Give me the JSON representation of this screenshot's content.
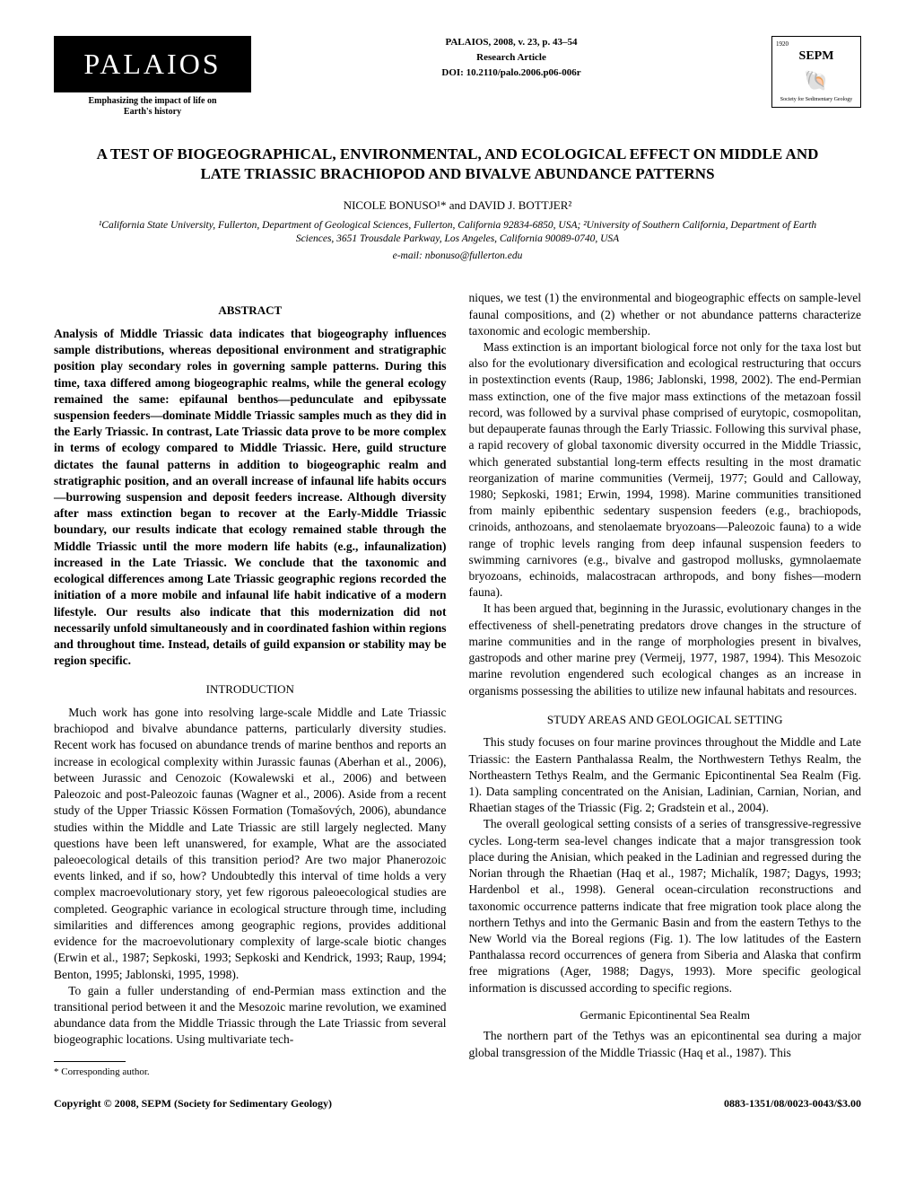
{
  "header": {
    "journal_logo_text": "PALAIOS",
    "journal_tagline1": "Emphasizing the impact of life on",
    "journal_tagline2": "Earth's history",
    "citation": "PALAIOS, 2008, v. 23, p. 43–54",
    "article_type": "Research Article",
    "doi": "DOI: 10.2110/palo.2006.p06-006r",
    "sepm_year": "1920",
    "sepm_text": "SEPM",
    "sepm_sub": "Society for Sedimentary Geology"
  },
  "title": "A TEST OF BIOGEOGRAPHICAL, ENVIRONMENTAL, AND ECOLOGICAL EFFECT ON MIDDLE AND LATE TRIASSIC BRACHIOPOD AND BIVALVE ABUNDANCE PATTERNS",
  "authors": "NICOLE BONUSO¹* and DAVID J. BOTTJER²",
  "affiliations": "¹California State University, Fullerton, Department of Geological Sciences, Fullerton, California 92834-6850, USA; ²University of Southern California, Department of Earth Sciences, 3651 Trousdale Parkway, Los Angeles, California 90089-0740, USA",
  "email": "e-mail: nbonuso@fullerton.edu",
  "sections": {
    "abstract_heading": "ABSTRACT",
    "abstract": "Analysis of Middle Triassic data indicates that biogeography influences sample distributions, whereas depositional environment and stratigraphic position play secondary roles in governing sample patterns. During this time, taxa differed among biogeographic realms, while the general ecology remained the same: epifaunal benthos—pedunculate and epibyssate suspension feeders—dominate Middle Triassic samples much as they did in the Early Triassic. In contrast, Late Triassic data prove to be more complex in terms of ecology compared to Middle Triassic. Here, guild structure dictates the faunal patterns in addition to biogeographic realm and stratigraphic position, and an overall increase of infaunal life habits occurs—burrowing suspension and deposit feeders increase. Although diversity after mass extinction began to recover at the Early-Middle Triassic boundary, our results indicate that ecology remained stable through the Middle Triassic until the more modern life habits (e.g., infaunalization) increased in the Late Triassic. We conclude that the taxonomic and ecological differences among Late Triassic geographic regions recorded the initiation of a more mobile and infaunal life habit indicative of a modern lifestyle. Our results also indicate that this modernization did not necessarily unfold simultaneously and in coordinated fashion within regions and throughout time. Instead, details of guild expansion or stability may be region specific.",
    "intro_heading": "INTRODUCTION",
    "intro_p1": "Much work has gone into resolving large-scale Middle and Late Triassic brachiopod and bivalve abundance patterns, particularly diversity studies. Recent work has focused on abundance trends of marine benthos and reports an increase in ecological complexity within Jurassic faunas (Aberhan et al., 2006), between Jurassic and Cenozoic (Kowalewski et al., 2006) and between Paleozoic and post-Paleozoic faunas (Wagner et al., 2006). Aside from a recent study of the Upper Triassic Kössen Formation (Tomašových, 2006), abundance studies within the Middle and Late Triassic are still largely neglected. Many questions have been left unanswered, for example, What are the associated paleoecological details of this transition period? Are two major Phanerozoic events linked, and if so, how? Undoubtedly this interval of time holds a very complex macroevolutionary story, yet few rigorous paleoecological studies are completed. Geographic variance in ecological structure through time, including similarities and differences among geographic regions, provides additional evidence for the macroevolutionary complexity of large-scale biotic changes (Erwin et al., 1987; Sepkoski, 1993; Sepkoski and Kendrick, 1993; Raup, 1994; Benton, 1995; Jablonski, 1995, 1998).",
    "intro_p2": "To gain a fuller understanding of end-Permian mass extinction and the transitional period between it and the Mesozoic marine revolution, we examined abundance data from the Middle Triassic through the Late Triassic from several biogeographic locations. Using multivariate tech-",
    "col2_p1": "niques, we test (1) the environmental and biogeographic effects on sample-level faunal compositions, and (2) whether or not abundance patterns characterize taxonomic and ecologic membership.",
    "col2_p2": "Mass extinction is an important biological force not only for the taxa lost but also for the evolutionary diversification and ecological restructuring that occurs in postextinction events (Raup, 1986; Jablonski, 1998, 2002). The end-Permian mass extinction, one of the five major mass extinctions of the metazoan fossil record, was followed by a survival phase comprised of eurytopic, cosmopolitan, but depauperate faunas through the Early Triassic. Following this survival phase, a rapid recovery of global taxonomic diversity occurred in the Middle Triassic, which generated substantial long-term effects resulting in the most dramatic reorganization of marine communities (Vermeij, 1977; Gould and Calloway, 1980; Sepkoski, 1981; Erwin, 1994, 1998). Marine communities transitioned from mainly epibenthic sedentary suspension feeders (e.g., brachiopods, crinoids, anthozoans, and stenolaemate bryozoans—Paleozoic fauna) to a wide range of trophic levels ranging from deep infaunal suspension feeders to swimming carnivores (e.g., bivalve and gastropod mollusks, gymnolaemate bryozoans, echinoids, malacostracan arthropods, and bony fishes—modern fauna).",
    "col2_p3": "It has been argued that, beginning in the Jurassic, evolutionary changes in the effectiveness of shell-penetrating predators drove changes in the structure of marine communities and in the range of morphologies present in bivalves, gastropods and other marine prey (Vermeij, 1977, 1987, 1994). This Mesozoic marine revolution engendered such ecological changes as an increase in organisms possessing the abilities to utilize new infaunal habitats and resources.",
    "study_heading": "STUDY AREAS AND GEOLOGICAL SETTING",
    "study_p1": "This study focuses on four marine provinces throughout the Middle and Late Triassic: the Eastern Panthalassa Realm, the Northwestern Tethys Realm, the Northeastern Tethys Realm, and the Germanic Epicontinental Sea Realm (Fig. 1). Data sampling concentrated on the Anisian, Ladinian, Carnian, Norian, and Rhaetian stages of the Triassic (Fig. 2; Gradstein et al., 2004).",
    "study_p2": "The overall geological setting consists of a series of transgressive-regressive cycles. Long-term sea-level changes indicate that a major transgression took place during the Anisian, which peaked in the Ladinian and regressed during the Norian through the Rhaetian (Haq et al., 1987; Michalík, 1987; Dagys, 1993; Hardenbol et al., 1998). General ocean-circulation reconstructions and taxonomic occurrence patterns indicate that free migration took place along the northern Tethys and into the Germanic Basin and from the eastern Tethys to the New World via the Boreal regions (Fig. 1). The low latitudes of the Eastern Panthalassa record occurrences of genera from Siberia and Alaska that confirm free migrations (Ager, 1988; Dagys, 1993). More specific geological information is discussed according to specific regions.",
    "germanic_heading": "Germanic Epicontinental Sea Realm",
    "germanic_p1": "The northern part of the Tethys was an epicontinental sea during a major global transgression of the Middle Triassic (Haq et al., 1987). This"
  },
  "footnote": "* Corresponding author.",
  "footer": {
    "copyright": "Copyright © 2008, SEPM (Society for Sedimentary Geology)",
    "issn": "0883-1351/08/0023-0043/$3.00"
  }
}
